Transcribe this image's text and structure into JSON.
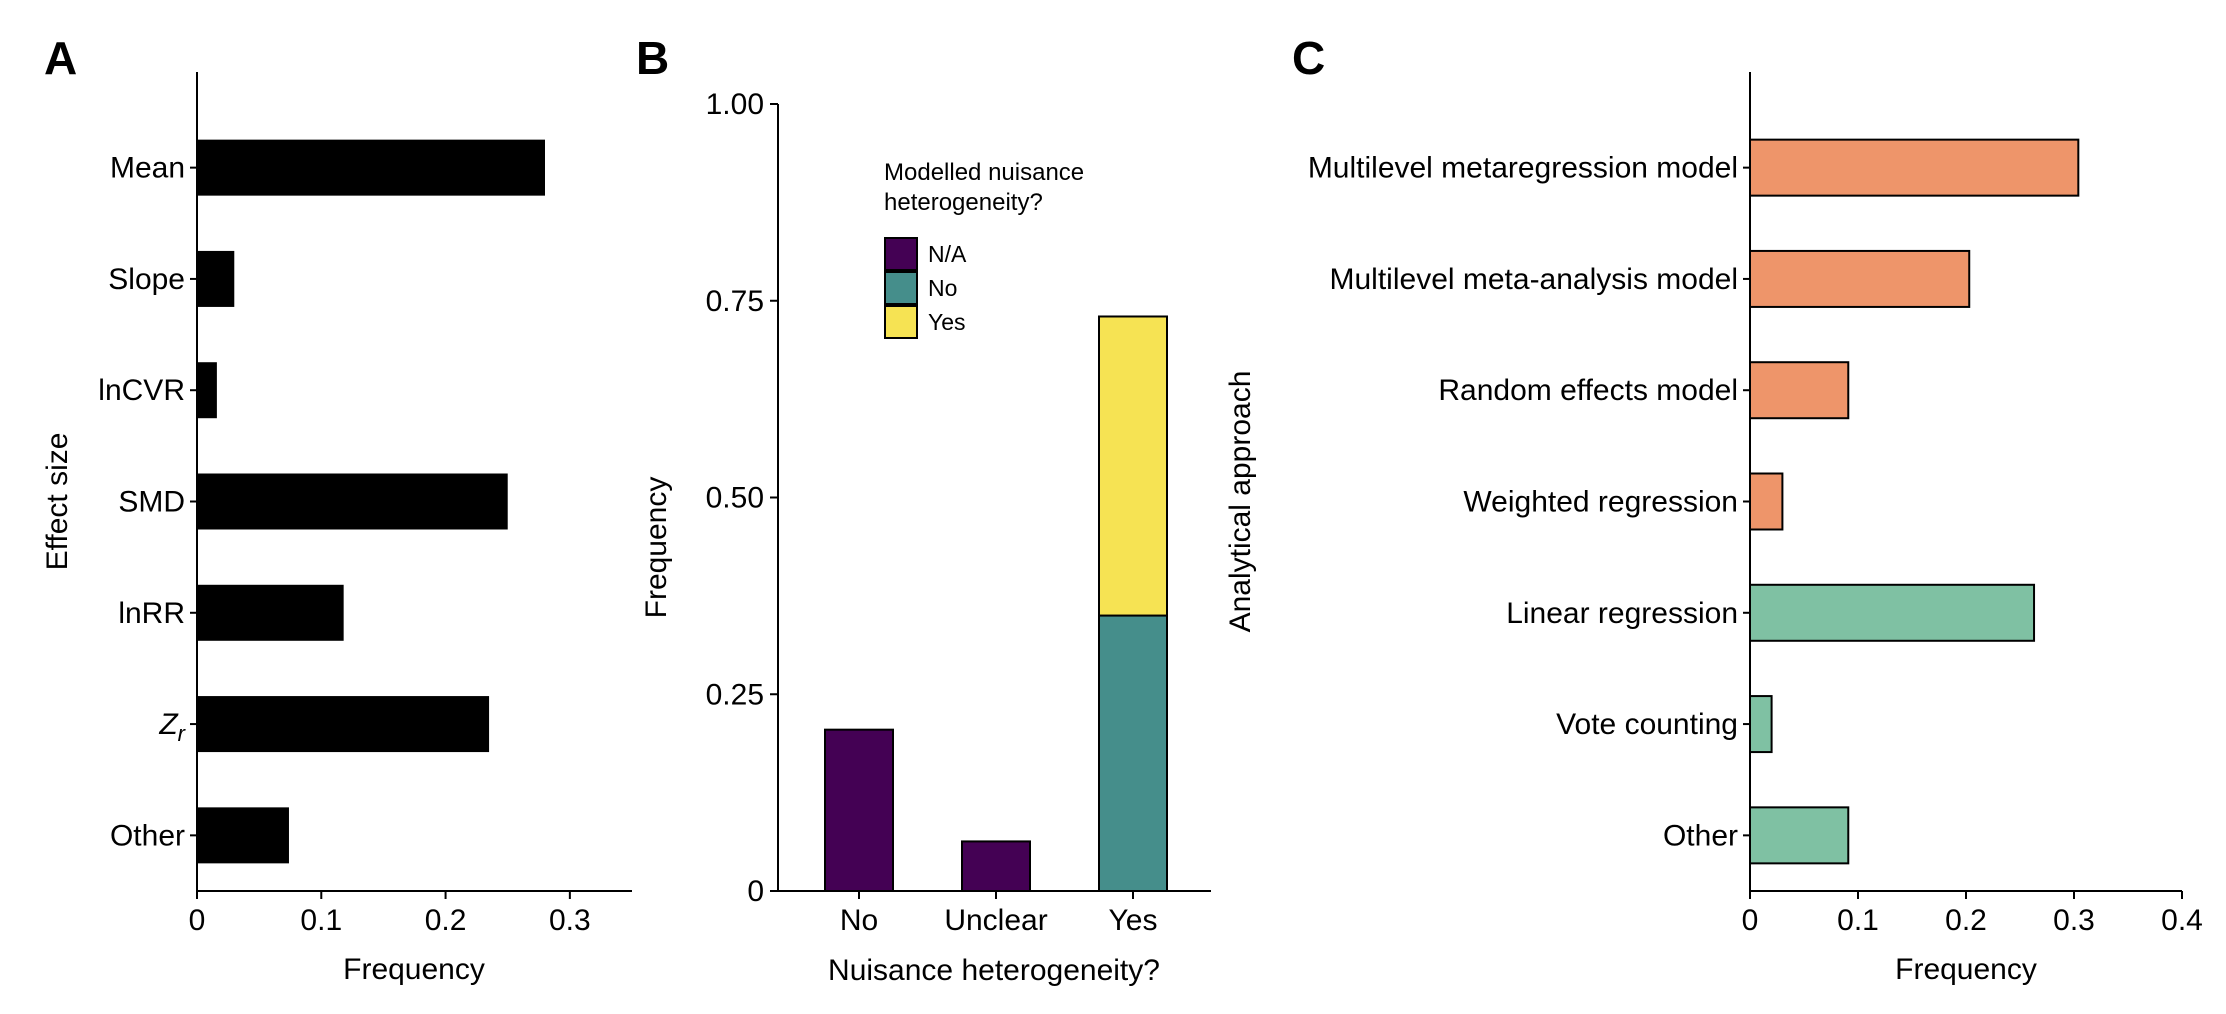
{
  "chart_data": [
    {
      "panel": "A",
      "type": "bar",
      "orientation": "horizontal",
      "xlabel": "Frequency",
      "ylabel": "Effect size",
      "xlim": [
        0,
        0.35
      ],
      "xticks": [
        "0",
        "0.1",
        "0.2",
        "0.3"
      ],
      "categories": [
        "Mean",
        "Slope",
        "lnCVR",
        "SMD",
        "lnRR",
        "Zr",
        "Other"
      ],
      "values": [
        0.28,
        0.03,
        0.016,
        0.25,
        0.118,
        0.235,
        0.074
      ],
      "color": "#000000"
    },
    {
      "panel": "B",
      "type": "bar",
      "stacked": true,
      "xlabel": "Nuisance heterogeneity?",
      "ylabel": "Frequency",
      "ylim": [
        0,
        1
      ],
      "yticks": [
        "0",
        "0.25",
        "0.50",
        "0.75",
        "1.00"
      ],
      "categories": [
        "No",
        "Unclear",
        "Yes"
      ],
      "legend_title": "Modelled nuisance heterogeneity?",
      "legend_position": "top-center",
      "series": [
        {
          "name": "N/A",
          "color": "#440154",
          "values": [
            0.205,
            0.063,
            0
          ]
        },
        {
          "name": "No",
          "color": "#458e8b",
          "values": [
            0,
            0,
            0.35
          ]
        },
        {
          "name": "Yes",
          "color": "#f6e353",
          "values": [
            0,
            0,
            0.38
          ]
        }
      ]
    },
    {
      "panel": "C",
      "type": "bar",
      "orientation": "horizontal",
      "xlabel": "Frequency",
      "ylabel": "Analytical approach",
      "xlim": [
        0,
        0.4
      ],
      "xticks": [
        "0",
        "0.1",
        "0.2",
        "0.3",
        "0.4"
      ],
      "categories": [
        "Multilevel metaregression model",
        "Multilevel meta-analysis model",
        "Random effects model",
        "Weighted regression",
        "Linear regression",
        "Vote counting",
        "Other"
      ],
      "values": [
        0.304,
        0.203,
        0.091,
        0.03,
        0.263,
        0.02,
        0.091
      ],
      "colors": [
        "#ee956a",
        "#ee956a",
        "#ee956a",
        "#ee956a",
        "#7fc1a3",
        "#7fc1a3",
        "#7fc1a3"
      ]
    }
  ]
}
